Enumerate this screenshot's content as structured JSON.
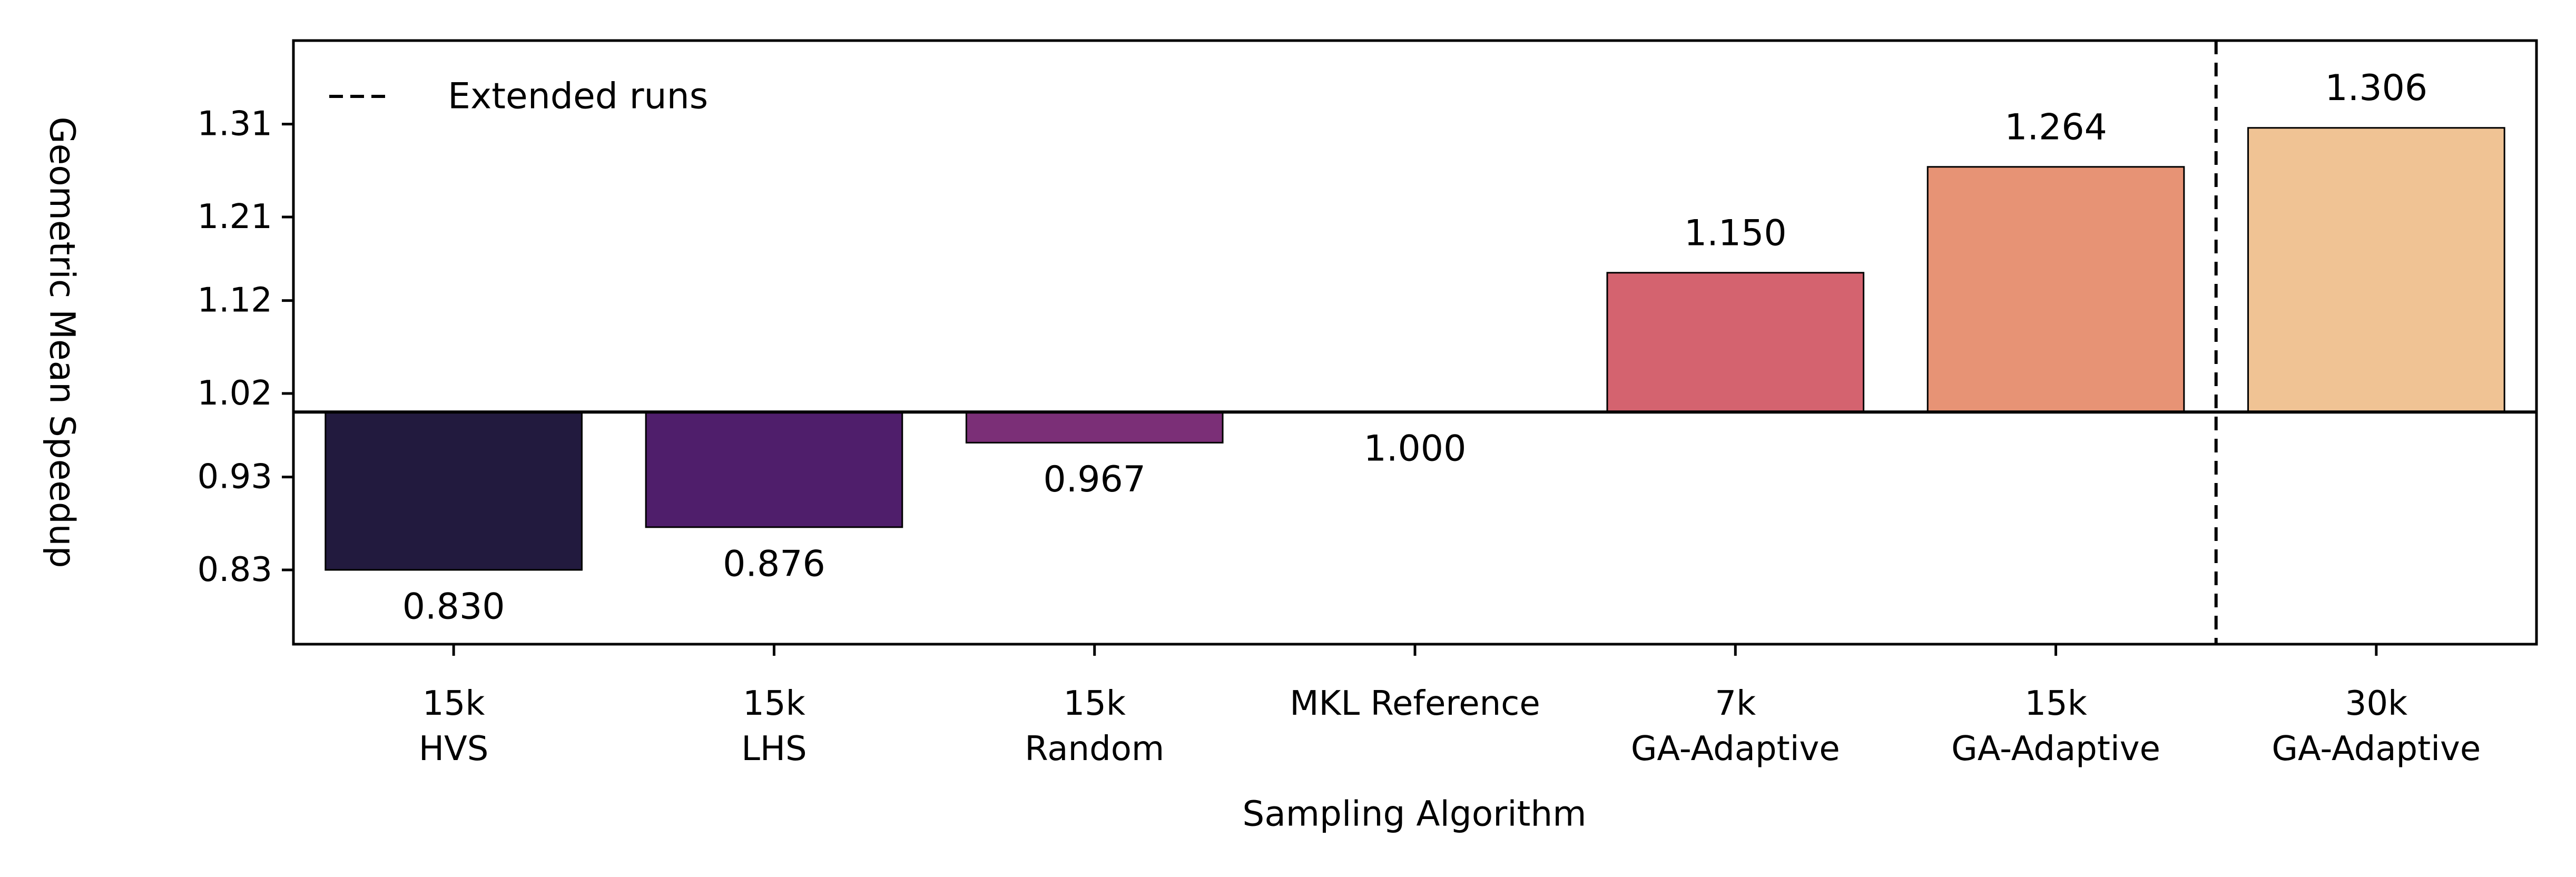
{
  "chart_data": {
    "type": "bar",
    "title": "",
    "xlabel": "Sampling Algorithm",
    "ylabel": "Geometric Mean Speedup",
    "baseline": 1.0,
    "ylim": [
      0.75,
      1.4
    ],
    "yticks": [
      0.83,
      0.93,
      1.02,
      1.12,
      1.21,
      1.31
    ],
    "ytick_labels": [
      "0.83",
      "0.93",
      "1.02",
      "1.12",
      "1.21",
      "1.31"
    ],
    "categories": [
      [
        "15k",
        "HVS"
      ],
      [
        "15k",
        "LHS"
      ],
      [
        "15k",
        "Random"
      ],
      [
        "MKL Reference"
      ],
      [
        "7k",
        "GA-Adaptive"
      ],
      [
        "15k",
        "GA-Adaptive"
      ],
      [
        "30k",
        "GA-Adaptive"
      ]
    ],
    "values": [
      0.83,
      0.876,
      0.967,
      1.0,
      1.15,
      1.264,
      1.306
    ],
    "value_labels": [
      "0.830",
      "0.876",
      "0.967",
      "1.000",
      "1.150",
      "1.264",
      "1.306"
    ],
    "colors": [
      "#221a3e",
      "#4f1e6b",
      "#7b2f77",
      "#ffffff",
      "#d4636f",
      "#e79375",
      "#f0c394"
    ],
    "edge_color": "#000000",
    "legend": {
      "label": "Extended runs",
      "style": "dashed line",
      "placement": "top-left"
    },
    "separator": {
      "between_categories": [
        5,
        6
      ],
      "style": "dashed"
    },
    "grid": false
  }
}
